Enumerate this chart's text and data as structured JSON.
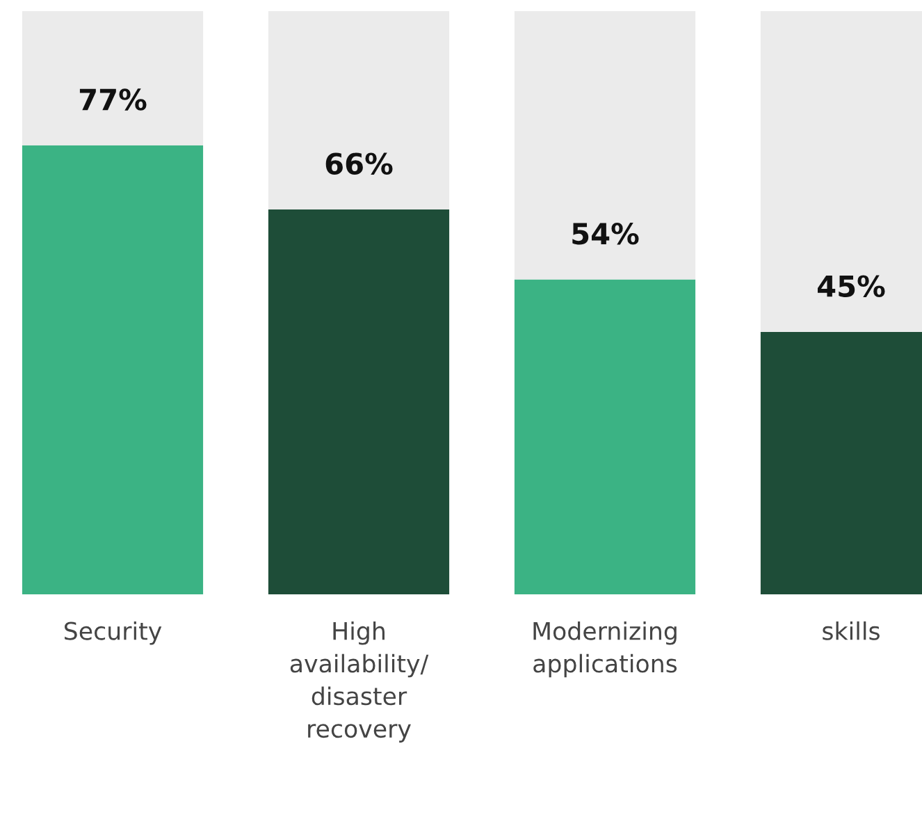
{
  "chart_data": {
    "type": "bar",
    "stacked": true,
    "categories": [
      "Security",
      "High\navailability/\ndisaster\nrecovery",
      "Modernizing\napplications",
      "skills"
    ],
    "ylim": [
      0,
      100
    ],
    "series": [
      {
        "colors": [
          "#3bb384",
          "#1e4d38",
          "#3bb384",
          "#1e4d38"
        ],
        "values": [
          77,
          66,
          54,
          45
        ],
        "value_labels": [
          "77%",
          "66%",
          "54%",
          "45%"
        ]
      },
      {
        "color": "#ebebeb",
        "values": [
          23,
          34,
          46,
          55
        ]
      }
    ],
    "tick_labels": "x",
    "grid": false,
    "legend": false
  }
}
